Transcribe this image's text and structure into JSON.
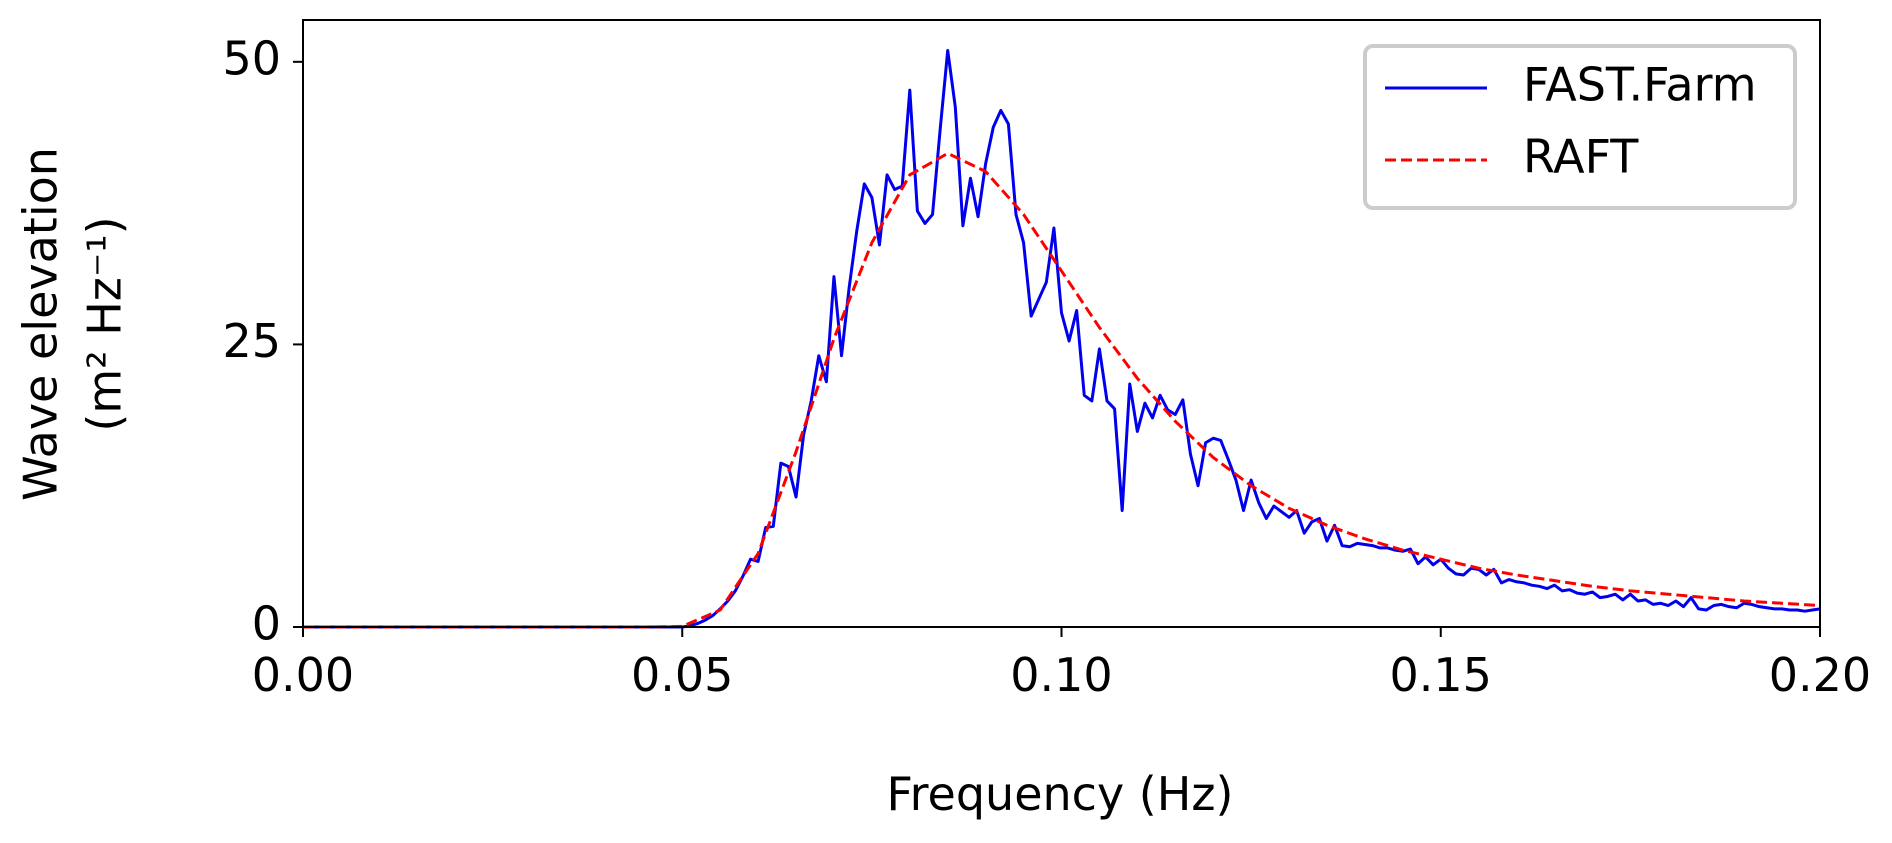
{
  "chart_data": {
    "type": "line",
    "xlabel": "Frequency (Hz)",
    "ylabel": [
      "Wave elevation",
      "(m² Hz⁻¹)"
    ],
    "xlim": [
      0,
      0.2
    ],
    "ylim": [
      0,
      53.7
    ],
    "xticks": [
      {
        "value": 0,
        "label": "0.00"
      },
      {
        "value": 0.05,
        "label": "0.05"
      },
      {
        "value": 0.1,
        "label": "0.10"
      },
      {
        "value": 0.15,
        "label": "0.15"
      },
      {
        "value": 0.2,
        "label": "0.20"
      }
    ],
    "yticks": [
      0,
      25,
      50
    ],
    "grid": false,
    "legend": "upper right",
    "series": [
      {
        "name": "FAST.Farm",
        "color": "#0000ee",
        "dash": "solid",
        "x": [
          0,
          0.01,
          0.02,
          0.03,
          0.04,
          0.05,
          0.051,
          0.052,
          0.053,
          0.054,
          0.055,
          0.056,
          0.057,
          0.058,
          0.059,
          0.06,
          0.061,
          0.062,
          0.063,
          0.064,
          0.065,
          0.066,
          0.067,
          0.068,
          0.069,
          0.07,
          0.071,
          0.072,
          0.073,
          0.074,
          0.075,
          0.076,
          0.077,
          0.078,
          0.079,
          0.08,
          0.081,
          0.082,
          0.083,
          0.084,
          0.085,
          0.086,
          0.087,
          0.088,
          0.089,
          0.09,
          0.091,
          0.092,
          0.093,
          0.094,
          0.095,
          0.096,
          0.097,
          0.098,
          0.099,
          0.1,
          0.101,
          0.102,
          0.103,
          0.104,
          0.105,
          0.106,
          0.107,
          0.108,
          0.109,
          0.11,
          0.111,
          0.112,
          0.113,
          0.114,
          0.115,
          0.116,
          0.117,
          0.118,
          0.119,
          0.12,
          0.121,
          0.122,
          0.123,
          0.124,
          0.125,
          0.126,
          0.127,
          0.128,
          0.129,
          0.13,
          0.131,
          0.132,
          0.133,
          0.134,
          0.135,
          0.136,
          0.137,
          0.138,
          0.139,
          0.14,
          0.141,
          0.142,
          0.143,
          0.144,
          0.145,
          0.146,
          0.147,
          0.148,
          0.149,
          0.15,
          0.151,
          0.152,
          0.153,
          0.154,
          0.155,
          0.156,
          0.157,
          0.158,
          0.159,
          0.16,
          0.161,
          0.162,
          0.163,
          0.164,
          0.165,
          0.166,
          0.167,
          0.168,
          0.169,
          0.17,
          0.171,
          0.172,
          0.173,
          0.174,
          0.175,
          0.176,
          0.177,
          0.178,
          0.179,
          0.18,
          0.181,
          0.182,
          0.183,
          0.184,
          0.185,
          0.186,
          0.187,
          0.188,
          0.189,
          0.19,
          0.191,
          0.192,
          0.193,
          0.194,
          0.195,
          0.196,
          0.197,
          0.198,
          0.199,
          0.2
        ],
        "values": [
          0,
          0,
          0,
          0,
          0,
          0,
          0.1,
          0.3,
          0.6,
          1.0,
          1.6,
          2.3,
          3.2,
          4.5,
          6.0,
          5.8,
          8.8,
          8.9,
          14.5,
          14.2,
          11.5,
          17,
          20,
          24,
          21.7,
          31,
          24,
          30,
          35,
          39.2,
          38,
          33.8,
          40,
          38.7,
          39,
          47.5,
          36.8,
          35.7,
          36.5,
          44,
          51,
          46,
          35.5,
          39.7,
          36.3,
          41,
          44.2,
          45.7,
          44.5,
          36.5,
          34,
          27.5,
          29,
          30.5,
          35.3,
          27.8,
          25.3,
          28,
          20.5,
          20,
          24.6,
          20,
          19.3,
          10.3,
          21.5,
          17.3,
          19.8,
          18.5,
          20.5,
          19.2,
          18.8,
          20.1,
          15.3,
          12.5,
          16.3,
          16.7,
          16.5,
          14.8,
          13,
          10.3,
          13,
          11,
          9.6,
          10.7,
          10.2,
          9.7,
          10.3,
          8.3,
          9.3,
          9.6,
          7.6,
          9.0,
          7.2,
          7.1,
          7.4,
          7.3,
          7.2,
          7.0,
          7.0,
          6.8,
          6.7,
          6.9,
          5.6,
          6.2,
          5.5,
          6.0,
          5.2,
          4.7,
          4.6,
          5.2,
          5.1,
          4.6,
          5.1,
          3.9,
          4.2,
          4.0,
          3.9,
          3.7,
          3.6,
          3.4,
          3.7,
          3.2,
          3.3,
          3.0,
          2.9,
          3.1,
          2.6,
          2.7,
          2.9,
          2.4,
          2.9,
          2.3,
          2.4,
          2.0,
          2.1,
          1.9,
          2.3,
          1.8,
          2.6,
          1.6,
          1.5,
          1.9,
          2.0,
          1.8,
          1.7,
          2.1,
          2.0,
          1.8,
          1.7,
          1.6,
          1.6,
          1.5,
          1.5,
          1.4,
          1.5,
          1.6
        ]
      },
      {
        "name": "RAFT",
        "color": "#ff0000",
        "dash": "dashed",
        "x": [
          0,
          0.045,
          0.05,
          0.055,
          0.06,
          0.065,
          0.07,
          0.075,
          0.08,
          0.085,
          0.09,
          0.095,
          0.1,
          0.105,
          0.11,
          0.115,
          0.12,
          0.125,
          0.13,
          0.135,
          0.14,
          0.145,
          0.15,
          0.155,
          0.16,
          0.165,
          0.17,
          0.175,
          0.18,
          0.185,
          0.19,
          0.195,
          0.2
        ],
        "values": [
          0,
          0,
          0.05,
          1.5,
          6.5,
          15.5,
          25.5,
          34,
          40,
          41.9,
          40.3,
          36.5,
          31.5,
          26.5,
          22,
          18.2,
          15,
          12.5,
          10.5,
          9,
          7.8,
          6.8,
          6.0,
          5.2,
          4.6,
          4.1,
          3.6,
          3.2,
          2.9,
          2.6,
          2.3,
          2.1,
          1.9
        ]
      }
    ]
  }
}
